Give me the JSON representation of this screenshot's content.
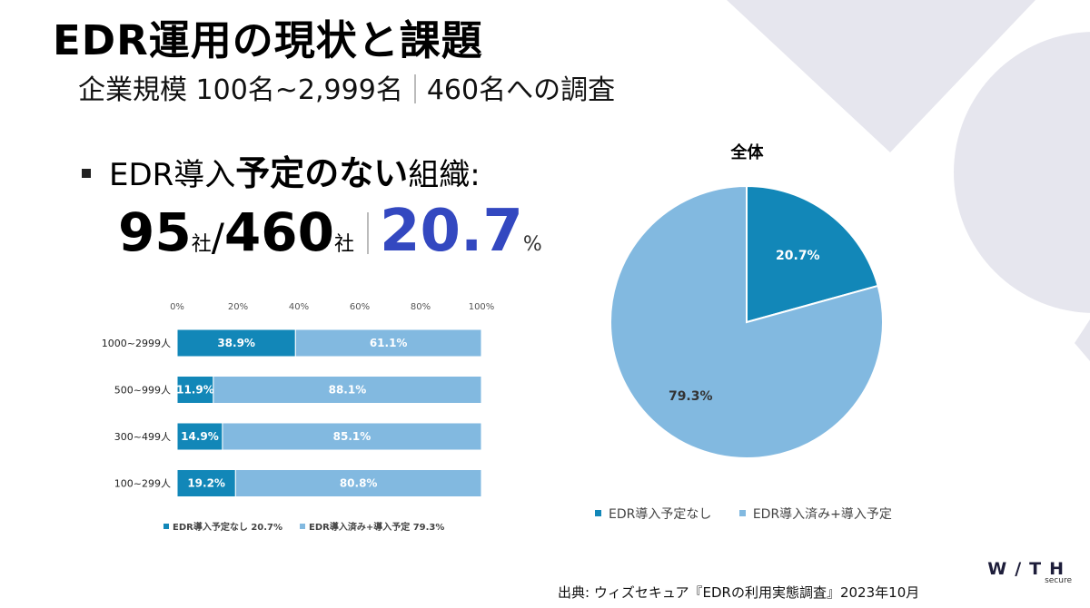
{
  "header": {
    "title": "EDR運用の現状と課題",
    "subtitle_left": "企業規模 100名~2,999名",
    "subtitle_right": "460名への調査"
  },
  "highlight": {
    "prefix": "EDR導入",
    "emphasis": "予定のない",
    "suffix": "組織:",
    "count": "95",
    "count_unit": "社",
    "slash": "/",
    "total": "460",
    "total_unit": "社",
    "percent": "20.7",
    "percent_unit": "%"
  },
  "chart_data": [
    {
      "type": "bar",
      "orientation": "horizontal",
      "stacked": "100%",
      "title": "",
      "categories": [
        "1000~2999人",
        "500~999人",
        "300~499人",
        "100~299人"
      ],
      "x_ticks": [
        "0%",
        "20%",
        "40%",
        "60%",
        "80%",
        "100%"
      ],
      "xlim": [
        0,
        100
      ],
      "grid": false,
      "legend_position": "bottom",
      "series": [
        {
          "name": "EDR導入予定なし 20.7%",
          "values": [
            38.9,
            11.9,
            14.9,
            19.2
          ],
          "labels": [
            "38.9%",
            "11.9%",
            "14.9%",
            "19.2%"
          ],
          "color": "#1287b8"
        },
        {
          "name": "EDR導入済み+導入予定 79.3%",
          "values": [
            61.1,
            88.1,
            85.1,
            80.8
          ],
          "labels": [
            "61.1%",
            "88.1%",
            "85.1%",
            "80.8%"
          ],
          "color": "#82b9e0"
        }
      ]
    },
    {
      "type": "pie",
      "title": "全体",
      "legend_position": "bottom",
      "slices": [
        {
          "name": "EDR導入予定なし",
          "value": 20.7,
          "label": "20.7%",
          "color": "#1287b8"
        },
        {
          "name": "EDR導入済み+導入予定",
          "value": 79.3,
          "label": "79.3%",
          "color": "#82b9e0"
        }
      ]
    }
  ],
  "footer": {
    "source": "出典: ウィズセキュア『EDRの利用実態調査』2023年10月",
    "logo_text": "W/TH",
    "logo_sub": "secure"
  },
  "theme": {
    "accent": "#3348c0",
    "decor": "#e6e6ee"
  }
}
